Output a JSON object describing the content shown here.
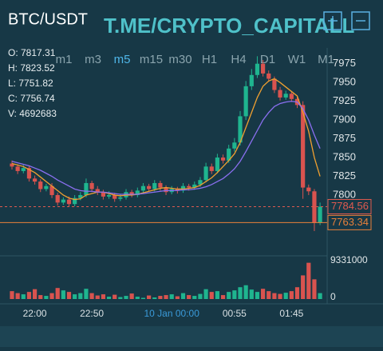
{
  "symbol": "BTC/USDT",
  "watermark": "T.ME/CRYPTO_CAPITALL",
  "info": [
    "O: 7817.31",
    "H: 7823.52",
    "L: 7751.82",
    "C: 7756.74",
    "V: 4692683"
  ],
  "timeframes": [
    "m1",
    "m3",
    "m5",
    "m15",
    "m30",
    "H1",
    "H4",
    "D1",
    "W1",
    "M1"
  ],
  "selected_timeframe": "m5",
  "chart_data": {
    "type": "candlestick",
    "categories": [
      null,
      null,
      null,
      null,
      "22:00",
      null,
      null,
      null,
      null,
      null,
      null,
      null,
      null,
      null,
      "22:50",
      null,
      null,
      null,
      null,
      null,
      null,
      null,
      null,
      null,
      null,
      null,
      null,
      null,
      "10 Jan 00:00",
      null,
      null,
      null,
      null,
      null,
      null,
      null,
      null,
      null,
      null,
      "00:55",
      null,
      null,
      null,
      null,
      null,
      null,
      null,
      null,
      null,
      "01:45",
      null,
      null,
      null,
      null,
      null
    ],
    "open": [
      7842,
      7838,
      7832,
      7836,
      7822,
      7818,
      7808,
      7812,
      7800,
      7790,
      7794,
      7788,
      7796,
      7800,
      7816,
      7808,
      7804,
      7798,
      7800,
      7795,
      7797,
      7804,
      7800,
      7806,
      7812,
      7808,
      7816,
      7810,
      7804,
      7808,
      7806,
      7812,
      7810,
      7814,
      7820,
      7838,
      7832,
      7850,
      7846,
      7862,
      7870,
      7905,
      7945,
      7960,
      7975,
      7962,
      7955,
      7940,
      7930,
      7935,
      7928,
      7920,
      7810,
      7805,
      7763
    ],
    "high": [
      7846,
      7841,
      7840,
      7839,
      7826,
      7821,
      7815,
      7816,
      7803,
      7797,
      7798,
      7800,
      7804,
      7822,
      7819,
      7812,
      7807,
      7805,
      7803,
      7801,
      7808,
      7807,
      7810,
      7816,
      7815,
      7820,
      7819,
      7813,
      7812,
      7811,
      7816,
      7815,
      7818,
      7824,
      7843,
      7842,
      7855,
      7854,
      7867,
      7876,
      7912,
      7952,
      7968,
      7985,
      7980,
      7966,
      7958,
      7944,
      7939,
      7938,
      7932,
      7925,
      7814,
      7808,
      7790
    ],
    "low": [
      7834,
      7828,
      7829,
      7818,
      7814,
      7804,
      7805,
      7796,
      7786,
      7787,
      7784,
      7785,
      7793,
      7797,
      7804,
      7800,
      7794,
      7795,
      7791,
      7792,
      7794,
      7797,
      7797,
      7803,
      7805,
      7805,
      7806,
      7800,
      7801,
      7802,
      7803,
      7806,
      7807,
      7811,
      7817,
      7828,
      7829,
      7842,
      7843,
      7858,
      7866,
      7900,
      7940,
      7956,
      7958,
      7951,
      7936,
      7926,
      7927,
      7924,
      7916,
      7795,
      7800,
      7752,
      7760
    ],
    "close": [
      7838,
      7832,
      7836,
      7822,
      7818,
      7808,
      7812,
      7800,
      7790,
      7794,
      7788,
      7796,
      7800,
      7816,
      7808,
      7804,
      7798,
      7800,
      7795,
      7797,
      7804,
      7800,
      7806,
      7812,
      7808,
      7816,
      7810,
      7804,
      7808,
      7806,
      7812,
      7810,
      7814,
      7820,
      7838,
      7832,
      7850,
      7846,
      7862,
      7870,
      7905,
      7945,
      7960,
      7975,
      7962,
      7955,
      7940,
      7930,
      7935,
      7928,
      7920,
      7810,
      7805,
      7763,
      7784.56
    ],
    "volume": [
      2000000,
      1500000,
      1200000,
      1800000,
      2500000,
      1000000,
      800000,
      1500000,
      2800000,
      2200000,
      1800000,
      1200000,
      1500000,
      2600000,
      1500000,
      900000,
      1200000,
      600000,
      1100000,
      500000,
      800000,
      1400000,
      600000,
      300000,
      900000,
      400000,
      800000,
      1000000,
      1200000,
      700000,
      1500000,
      1000000,
      800000,
      1300000,
      2500000,
      1800000,
      2000000,
      1000000,
      1800000,
      2200000,
      3000000,
      3500000,
      2400000,
      1800000,
      2600000,
      2000000,
      1500000,
      1300000,
      1600000,
      2000000,
      3000000,
      6000000,
      9200000,
      5000000,
      1500000
    ],
    "up_color": "#1fb58f",
    "down_color": "#d9534f",
    "lines": [
      {
        "color": "#f0a030",
        "values": [
          7842,
          7840,
          7838,
          7834,
          7830,
          7824,
          7818,
          7812,
          7806,
          7800,
          7796,
          7794,
          7795,
          7800,
          7802,
          7804,
          7804,
          7802,
          7800,
          7799,
          7800,
          7800,
          7801,
          7803,
          7805,
          7807,
          7809,
          7810,
          7809,
          7808,
          7808,
          7809,
          7810,
          7813,
          7818,
          7823,
          7830,
          7838,
          7846,
          7855,
          7870,
          7890,
          7910,
          7930,
          7945,
          7952,
          7955,
          7950,
          7944,
          7938,
          7932,
          7910,
          7885,
          7850,
          7825
        ]
      },
      {
        "color": "#8a6ff0",
        "values": [
          7845,
          7843,
          7841,
          7839,
          7836,
          7833,
          7829,
          7825,
          7820,
          7816,
          7812,
          7808,
          7806,
          7805,
          7805,
          7804,
          7804,
          7803,
          7802,
          7801,
          7801,
          7801,
          7801,
          7802,
          7803,
          7804,
          7805,
          7806,
          7806,
          7806,
          7807,
          7807,
          7808,
          7809,
          7811,
          7814,
          7818,
          7822,
          7828,
          7835,
          7845,
          7858,
          7872,
          7886,
          7900,
          7910,
          7918,
          7922,
          7924,
          7925,
          7924,
          7915,
          7900,
          7880,
          7862
        ]
      }
    ],
    "ylim": [
      7719,
      7996
    ],
    "yticks": [
      7800,
      7825,
      7850,
      7875,
      7900,
      7925,
      7950,
      7975
    ],
    "volume_lim": [
      0,
      9331000
    ],
    "volume_ticks": [
      0,
      9331000
    ],
    "price_lines": [
      {
        "value": 7784.56,
        "color": "#e05a4f"
      },
      {
        "value": 7763.34,
        "color": "#e8803a"
      }
    ]
  }
}
